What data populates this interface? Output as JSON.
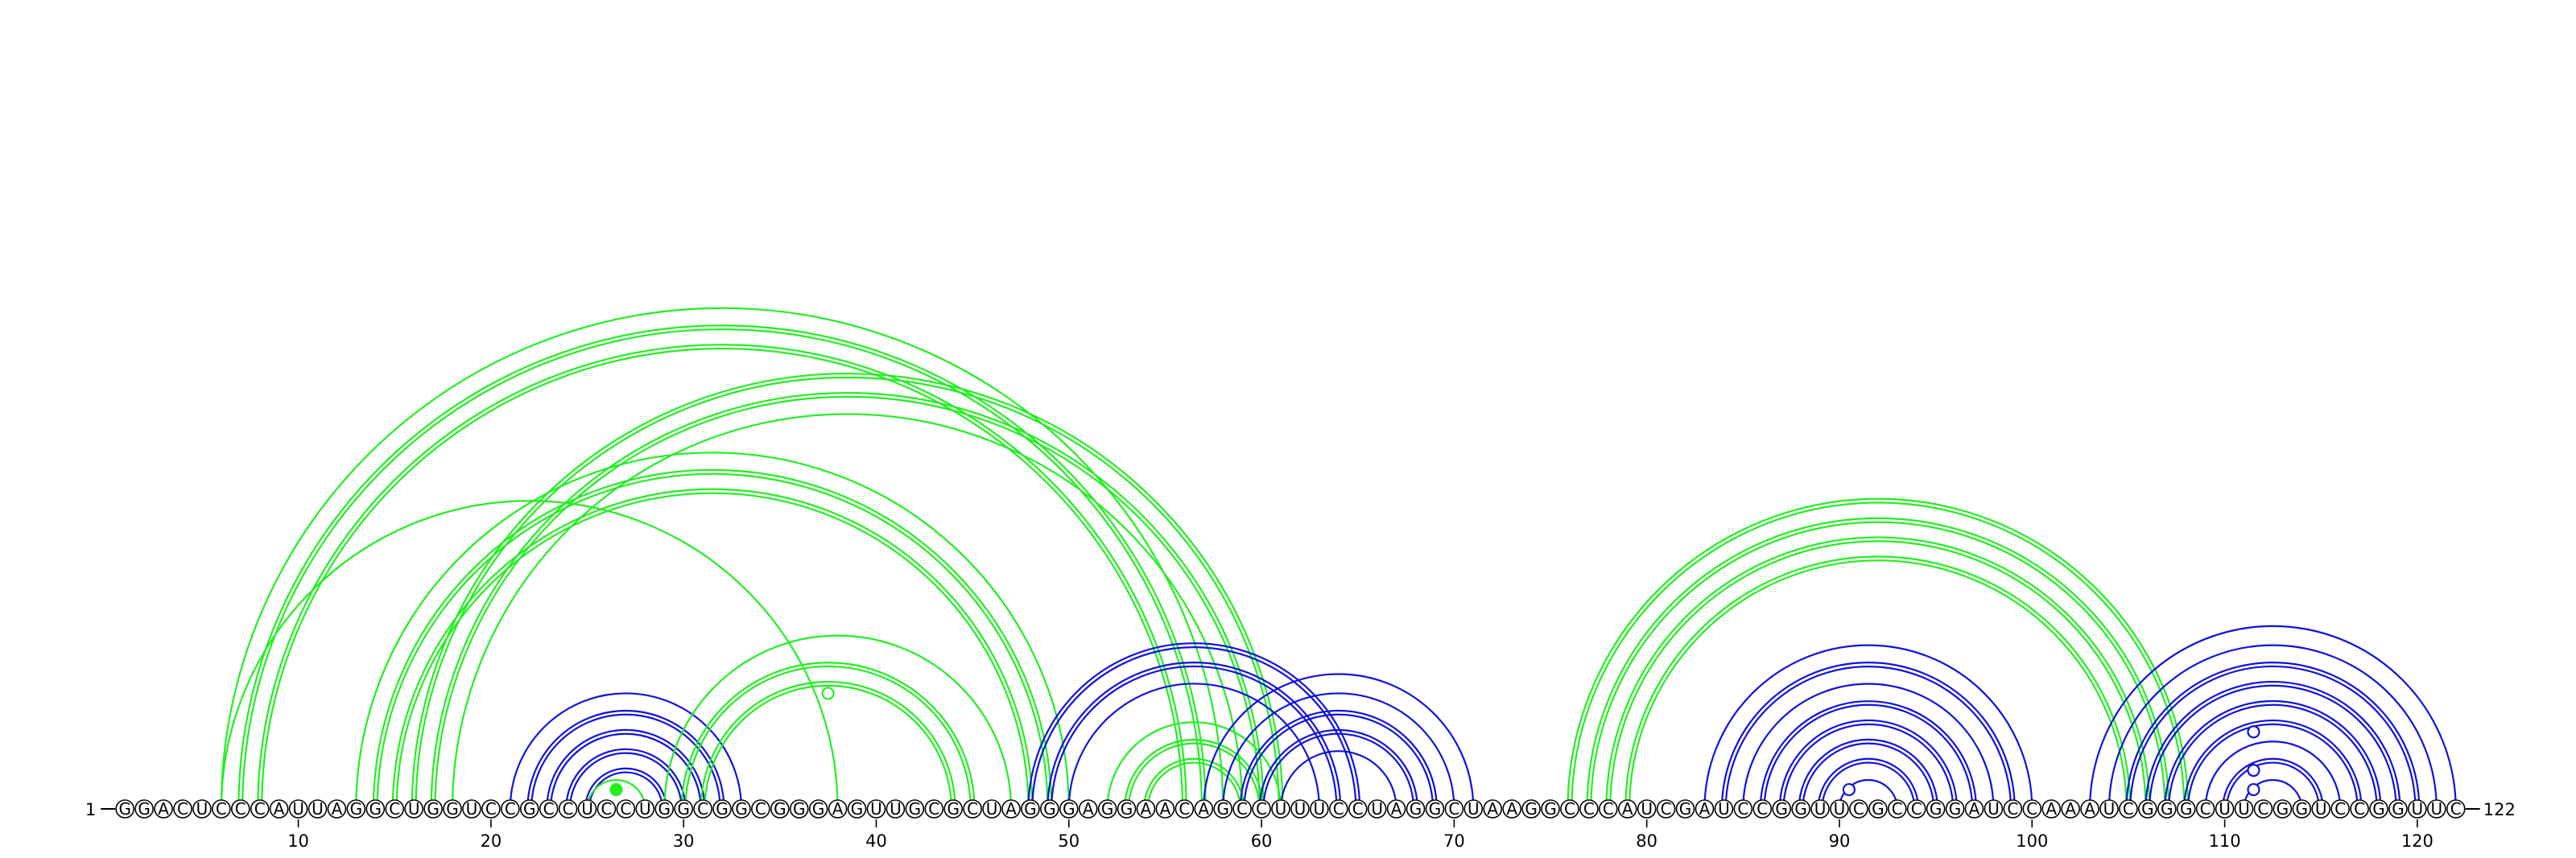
{
  "diagram": {
    "sequence": "GGACUCCCAUUAGGCUGGUCCGCCUCCUGGCGGCGGGAGUUGCGCUAGGGAGGAACAGCCUUUCCUAGGCUAAGGCCCAUCGAUCCGGUUCGCCGGAUCCAAAUCGGGCUUCGGUCCGGUUC",
    "start_label": "1",
    "end_label": "122",
    "ticks": [
      {
        "pos": 10,
        "label": "10"
      },
      {
        "pos": 20,
        "label": "20"
      },
      {
        "pos": 30,
        "label": "30"
      },
      {
        "pos": 40,
        "label": "40"
      },
      {
        "pos": 50,
        "label": "50"
      },
      {
        "pos": 60,
        "label": "60"
      },
      {
        "pos": 70,
        "label": "70"
      },
      {
        "pos": 80,
        "label": "80"
      },
      {
        "pos": 90,
        "label": "90"
      },
      {
        "pos": 100,
        "label": "100"
      },
      {
        "pos": 110,
        "label": "110"
      },
      {
        "pos": 120,
        "label": "120"
      }
    ],
    "colors": {
      "green": "#22ee22",
      "blue": "#1111dd"
    },
    "arcs": [
      {
        "i": 6,
        "j": 58,
        "color": "green",
        "double": false
      },
      {
        "i": 6,
        "j": 38,
        "color": "green",
        "double": false
      },
      {
        "i": 7,
        "j": 57,
        "color": "green",
        "double": true
      },
      {
        "i": 8,
        "j": 56,
        "color": "green",
        "double": true
      },
      {
        "i": 13,
        "j": 50,
        "color": "green",
        "double": false
      },
      {
        "i": 14,
        "j": 49,
        "color": "green",
        "double": true
      },
      {
        "i": 15,
        "j": 48,
        "color": "green",
        "double": true
      },
      {
        "i": 16,
        "j": 61,
        "color": "green",
        "double": true
      },
      {
        "i": 17,
        "j": 60,
        "color": "green",
        "double": true
      },
      {
        "i": 18,
        "j": 59,
        "color": "green",
        "double": false
      },
      {
        "i": 21,
        "j": 33,
        "color": "blue",
        "double": false
      },
      {
        "i": 22,
        "j": 32,
        "color": "blue",
        "double": true
      },
      {
        "i": 23,
        "j": 31,
        "color": "blue",
        "double": true
      },
      {
        "i": 24,
        "j": 30,
        "color": "blue",
        "double": true
      },
      {
        "i": 25,
        "j": 29,
        "color": "blue",
        "double": true
      },
      {
        "i": 25,
        "j": 28,
        "color": "green",
        "double": false
      },
      {
        "i": 29,
        "j": 47,
        "color": "green",
        "double": false
      },
      {
        "i": 30,
        "j": 45,
        "color": "green",
        "double": true
      },
      {
        "i": 31,
        "j": 44,
        "color": "green",
        "double": true
      },
      {
        "i": 48,
        "j": 65,
        "color": "blue",
        "double": true
      },
      {
        "i": 49,
        "j": 64,
        "color": "blue",
        "double": true
      },
      {
        "i": 50,
        "j": 63,
        "color": "blue",
        "double": false
      },
      {
        "i": 52,
        "j": 61,
        "color": "green",
        "double": false
      },
      {
        "i": 53,
        "j": 60,
        "color": "green",
        "double": true
      },
      {
        "i": 54,
        "j": 59,
        "color": "green",
        "double": true
      },
      {
        "i": 57,
        "j": 71,
        "color": "blue",
        "double": false
      },
      {
        "i": 58,
        "j": 70,
        "color": "blue",
        "double": false
      },
      {
        "i": 59,
        "j": 69,
        "color": "blue",
        "double": true
      },
      {
        "i": 60,
        "j": 68,
        "color": "blue",
        "double": true
      },
      {
        "i": 61,
        "j": 67,
        "color": "blue",
        "double": false
      },
      {
        "i": 76,
        "j": 108,
        "color": "green",
        "double": true
      },
      {
        "i": 77,
        "j": 107,
        "color": "green",
        "double": true
      },
      {
        "i": 78,
        "j": 106,
        "color": "green",
        "double": true
      },
      {
        "i": 79,
        "j": 105,
        "color": "green",
        "double": true
      },
      {
        "i": 83,
        "j": 100,
        "color": "blue",
        "double": false
      },
      {
        "i": 84,
        "j": 99,
        "color": "blue",
        "double": true
      },
      {
        "i": 85,
        "j": 98,
        "color": "blue",
        "double": false
      },
      {
        "i": 86,
        "j": 97,
        "color": "blue",
        "double": true
      },
      {
        "i": 87,
        "j": 96,
        "color": "blue",
        "double": true
      },
      {
        "i": 88,
        "j": 95,
        "color": "blue",
        "double": true
      },
      {
        "i": 89,
        "j": 94,
        "color": "blue",
        "double": true
      },
      {
        "i": 90,
        "j": 93,
        "color": "blue",
        "double": false
      },
      {
        "i": 103,
        "j": 122,
        "color": "blue",
        "double": false
      },
      {
        "i": 104,
        "j": 121,
        "color": "blue",
        "double": false
      },
      {
        "i": 105,
        "j": 120,
        "color": "blue",
        "double": true
      },
      {
        "i": 106,
        "j": 119,
        "color": "blue",
        "double": true
      },
      {
        "i": 107,
        "j": 118,
        "color": "blue",
        "double": true
      },
      {
        "i": 108,
        "j": 117,
        "color": "blue",
        "double": true
      },
      {
        "i": 109,
        "j": 116,
        "color": "blue",
        "double": false
      },
      {
        "i": 110,
        "j": 115,
        "color": "blue",
        "double": true
      },
      {
        "i": 111,
        "j": 114,
        "color": "blue",
        "double": false
      }
    ],
    "markers": [
      {
        "pos": 26.5,
        "level": 1,
        "color": "green",
        "filled": true
      },
      {
        "pos": 37.5,
        "level": 6,
        "color": "green",
        "filled": false
      },
      {
        "pos": 90.5,
        "level": 1,
        "color": "blue",
        "filled": false
      },
      {
        "pos": 111.5,
        "level": 1,
        "color": "blue",
        "filled": false
      },
      {
        "pos": 111.5,
        "level": 2,
        "color": "blue",
        "filled": false
      },
      {
        "pos": 111.5,
        "level": 4,
        "color": "blue",
        "filled": false
      }
    ]
  }
}
